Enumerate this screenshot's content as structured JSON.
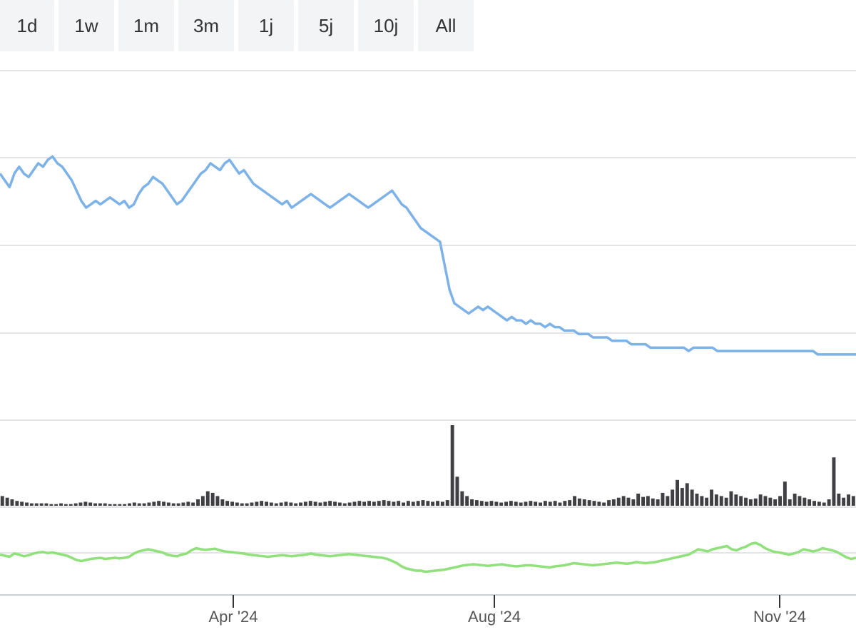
{
  "range_selector": {
    "buttons": [
      {
        "label": "1d"
      },
      {
        "label": "1w"
      },
      {
        "label": "1m"
      },
      {
        "label": "3m"
      },
      {
        "label": "1j"
      },
      {
        "label": "5j"
      },
      {
        "label": "10j"
      },
      {
        "label": "All"
      }
    ]
  },
  "colors": {
    "price_line": "#7cb2e8",
    "volume_bars": "#3f3f44",
    "indicator_line": "#90e07c",
    "gridline": "#e2e4e8",
    "axis": "#c8cfd9"
  },
  "chart_data": {
    "type": "line",
    "x_ticks": [
      "Apr '24",
      "Aug '24",
      "Nov '24"
    ],
    "grid": true,
    "price_series": {
      "values": [
        1.22,
        1.2,
        1.18,
        1.22,
        1.24,
        1.22,
        1.21,
        1.23,
        1.25,
        1.24,
        1.26,
        1.27,
        1.25,
        1.24,
        1.22,
        1.2,
        1.17,
        1.14,
        1.12,
        1.13,
        1.14,
        1.13,
        1.14,
        1.15,
        1.14,
        1.13,
        1.14,
        1.12,
        1.13,
        1.16,
        1.18,
        1.19,
        1.21,
        1.2,
        1.19,
        1.17,
        1.15,
        1.13,
        1.14,
        1.16,
        1.18,
        1.2,
        1.22,
        1.23,
        1.25,
        1.24,
        1.23,
        1.25,
        1.26,
        1.24,
        1.22,
        1.23,
        1.21,
        1.19,
        1.18,
        1.17,
        1.16,
        1.15,
        1.14,
        1.13,
        1.14,
        1.12,
        1.13,
        1.14,
        1.15,
        1.16,
        1.15,
        1.14,
        1.13,
        1.12,
        1.13,
        1.14,
        1.15,
        1.16,
        1.15,
        1.14,
        1.13,
        1.12,
        1.13,
        1.14,
        1.15,
        1.16,
        1.17,
        1.15,
        1.13,
        1.12,
        1.1,
        1.08,
        1.06,
        1.05,
        1.04,
        1.03,
        1.02,
        0.95,
        0.88,
        0.84,
        0.83,
        0.82,
        0.81,
        0.82,
        0.83,
        0.82,
        0.83,
        0.82,
        0.81,
        0.8,
        0.79,
        0.8,
        0.79,
        0.79,
        0.78,
        0.79,
        0.78,
        0.78,
        0.77,
        0.78,
        0.77,
        0.77,
        0.76,
        0.76,
        0.76,
        0.75,
        0.75,
        0.75,
        0.74,
        0.74,
        0.74,
        0.74,
        0.73,
        0.73,
        0.73,
        0.73,
        0.72,
        0.72,
        0.72,
        0.72,
        0.71,
        0.71,
        0.71,
        0.71,
        0.71,
        0.71,
        0.71,
        0.71,
        0.7,
        0.71,
        0.71,
        0.71,
        0.71,
        0.71,
        0.7,
        0.7,
        0.7,
        0.7,
        0.7,
        0.7,
        0.7,
        0.7,
        0.7,
        0.7,
        0.7,
        0.7,
        0.7,
        0.7,
        0.7,
        0.7,
        0.7,
        0.7,
        0.7,
        0.7,
        0.7,
        0.69,
        0.69,
        0.69,
        0.69,
        0.69,
        0.69,
        0.69,
        0.69,
        0.69
      ]
    },
    "volume_series": {
      "values": [
        0.12,
        0.1,
        0.08,
        0.06,
        0.05,
        0.04,
        0.03,
        0.03,
        0.03,
        0.03,
        0.02,
        0.02,
        0.03,
        0.02,
        0.02,
        0.03,
        0.04,
        0.05,
        0.04,
        0.03,
        0.03,
        0.03,
        0.02,
        0.02,
        0.02,
        0.02,
        0.03,
        0.04,
        0.03,
        0.03,
        0.04,
        0.05,
        0.06,
        0.05,
        0.04,
        0.03,
        0.03,
        0.04,
        0.05,
        0.04,
        0.08,
        0.12,
        0.18,
        0.16,
        0.12,
        0.08,
        0.06,
        0.05,
        0.04,
        0.03,
        0.03,
        0.04,
        0.05,
        0.06,
        0.05,
        0.04,
        0.03,
        0.04,
        0.05,
        0.04,
        0.03,
        0.04,
        0.05,
        0.06,
        0.05,
        0.04,
        0.05,
        0.06,
        0.05,
        0.04,
        0.03,
        0.04,
        0.05,
        0.06,
        0.05,
        0.06,
        0.05,
        0.06,
        0.07,
        0.06,
        0.05,
        0.06,
        0.04,
        0.06,
        0.05,
        0.06,
        0.07,
        0.06,
        0.05,
        0.06,
        0.05,
        0.07,
        1.0,
        0.36,
        0.18,
        0.12,
        0.08,
        0.07,
        0.06,
        0.05,
        0.06,
        0.05,
        0.04,
        0.05,
        0.06,
        0.05,
        0.04,
        0.05,
        0.06,
        0.05,
        0.04,
        0.06,
        0.05,
        0.06,
        0.04,
        0.06,
        0.07,
        0.12,
        0.09,
        0.08,
        0.07,
        0.06,
        0.05,
        0.04,
        0.07,
        0.08,
        0.1,
        0.12,
        0.1,
        0.08,
        0.15,
        0.11,
        0.12,
        0.09,
        0.08,
        0.16,
        0.12,
        0.2,
        0.32,
        0.22,
        0.28,
        0.2,
        0.15,
        0.12,
        0.1,
        0.2,
        0.14,
        0.12,
        0.1,
        0.18,
        0.14,
        0.12,
        0.1,
        0.08,
        0.09,
        0.14,
        0.12,
        0.1,
        0.08,
        0.12,
        0.3,
        0.08,
        0.15,
        0.12,
        0.1,
        0.08,
        0.06,
        0.05,
        0.04,
        0.08,
        0.6,
        0.15,
        0.1,
        0.14,
        0.12
      ]
    },
    "indicator_series": {
      "values": [
        0.5,
        0.48,
        0.46,
        0.52,
        0.5,
        0.47,
        0.49,
        0.52,
        0.54,
        0.55,
        0.53,
        0.54,
        0.52,
        0.5,
        0.48,
        0.44,
        0.4,
        0.38,
        0.4,
        0.42,
        0.43,
        0.44,
        0.42,
        0.43,
        0.44,
        0.43,
        0.44,
        0.46,
        0.52,
        0.56,
        0.58,
        0.6,
        0.58,
        0.56,
        0.54,
        0.5,
        0.48,
        0.47,
        0.5,
        0.52,
        0.58,
        0.62,
        0.6,
        0.59,
        0.6,
        0.61,
        0.58,
        0.56,
        0.55,
        0.54,
        0.53,
        0.52,
        0.5,
        0.49,
        0.48,
        0.47,
        0.46,
        0.47,
        0.48,
        0.49,
        0.48,
        0.47,
        0.48,
        0.49,
        0.5,
        0.52,
        0.5,
        0.49,
        0.48,
        0.47,
        0.48,
        0.49,
        0.5,
        0.51,
        0.5,
        0.49,
        0.48,
        0.47,
        0.46,
        0.45,
        0.44,
        0.42,
        0.38,
        0.34,
        0.28,
        0.24,
        0.22,
        0.2,
        0.2,
        0.18,
        0.19,
        0.2,
        0.21,
        0.22,
        0.24,
        0.26,
        0.28,
        0.3,
        0.31,
        0.32,
        0.31,
        0.3,
        0.29,
        0.3,
        0.31,
        0.32,
        0.3,
        0.29,
        0.28,
        0.29,
        0.3,
        0.3,
        0.29,
        0.28,
        0.27,
        0.26,
        0.28,
        0.29,
        0.3,
        0.32,
        0.34,
        0.33,
        0.32,
        0.31,
        0.3,
        0.31,
        0.32,
        0.33,
        0.34,
        0.35,
        0.34,
        0.33,
        0.34,
        0.36,
        0.35,
        0.34,
        0.35,
        0.36,
        0.38,
        0.4,
        0.42,
        0.44,
        0.46,
        0.48,
        0.5,
        0.55,
        0.6,
        0.58,
        0.56,
        0.6,
        0.62,
        0.64,
        0.66,
        0.6,
        0.58,
        0.62,
        0.65,
        0.7,
        0.72,
        0.68,
        0.62,
        0.58,
        0.55,
        0.54,
        0.52,
        0.5,
        0.52,
        0.55,
        0.6,
        0.58,
        0.56,
        0.58,
        0.62,
        0.6,
        0.58,
        0.55,
        0.5,
        0.45,
        0.42,
        0.44
      ]
    }
  }
}
